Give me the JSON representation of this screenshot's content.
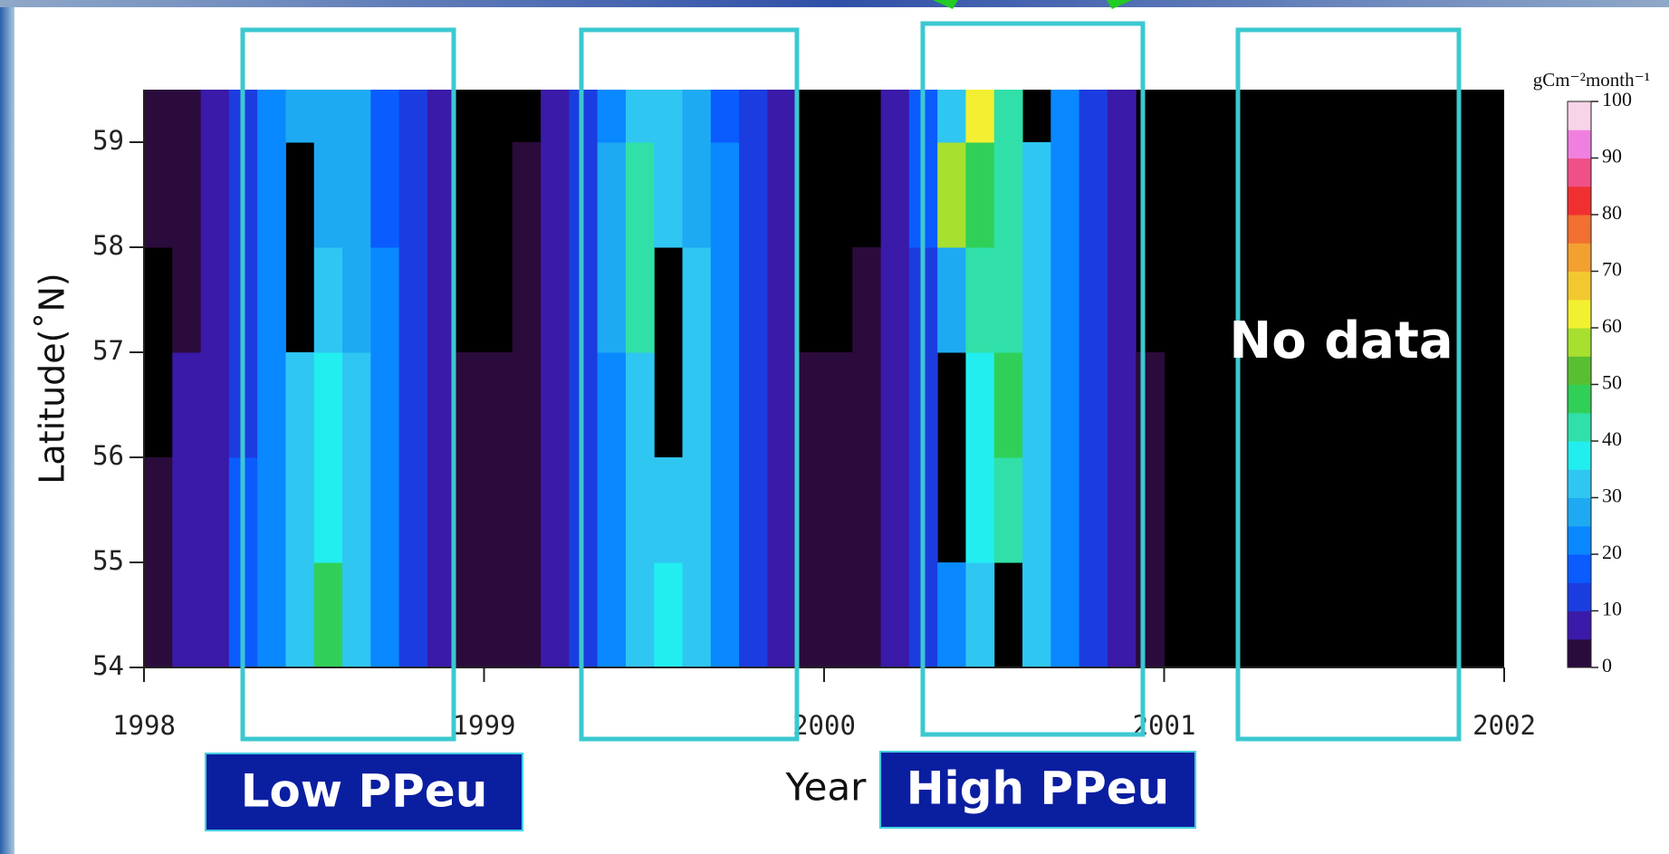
{
  "chart_data": {
    "type": "heatmap",
    "xlabel": "Year",
    "ylabel": "Latitude(˚N)",
    "colorbar_label": "gCm⁻²month⁻¹",
    "annotations": [
      "Low PPeu",
      "High PPeu",
      "No data"
    ],
    "xlim": [
      1998,
      2002
    ],
    "xticks": [
      1998,
      1999,
      2000,
      2001,
      2002
    ],
    "ylim": [
      54,
      59.5
    ],
    "yticks": [
      54,
      55,
      56,
      57,
      58,
      59
    ],
    "ybins": [
      54,
      55,
      56,
      57,
      58,
      59,
      59.5
    ],
    "nodata_color": "#000000",
    "levels": [
      0,
      5,
      10,
      15,
      20,
      25,
      30,
      35,
      40,
      45,
      50,
      55,
      60,
      65,
      70,
      75,
      80,
      85,
      90,
      95,
      100
    ],
    "colors": [
      "#2b0b3c",
      "#3a1aa8",
      "#1b3de0",
      "#0a5cff",
      "#0a88ff",
      "#1eaaf2",
      "#30c6f2",
      "#22eef0",
      "#30e0a8",
      "#30d058",
      "#58c030",
      "#a8e030",
      "#f2f030",
      "#f2c830",
      "#f2a030",
      "#f27030",
      "#f03030",
      "#f05088",
      "#f080e0",
      "#f8d4e8"
    ],
    "clim": [
      0,
      100
    ],
    "cticks": [
      0,
      10,
      20,
      30,
      40,
      50,
      60,
      70,
      80,
      90,
      100
    ],
    "z": [
      [
        3,
        5,
        9,
        15,
        24,
        32,
        45,
        32,
        22,
        12,
        6,
        3,
        3,
        3,
        6,
        12,
        22,
        30,
        38,
        32,
        20,
        12,
        6,
        3,
        3,
        3,
        6,
        14,
        24,
        32,
        null,
        32,
        24,
        14,
        6,
        3,
        null,
        null,
        null,
        null,
        null,
        null,
        null,
        null,
        null,
        null,
        null,
        null
      ],
      [
        3,
        5,
        9,
        15,
        24,
        34,
        38,
        32,
        20,
        12,
        6,
        3,
        3,
        3,
        6,
        12,
        22,
        32,
        34,
        30,
        20,
        12,
        6,
        3,
        3,
        3,
        6,
        14,
        null,
        36,
        40,
        32,
        24,
        14,
        6,
        3,
        null,
        null,
        null,
        null,
        null,
        null,
        null,
        null,
        null,
        null,
        null,
        null
      ],
      [
        null,
        5,
        8,
        14,
        22,
        33,
        35,
        30,
        20,
        12,
        6,
        3,
        3,
        3,
        6,
        12,
        24,
        34,
        null,
        30,
        20,
        12,
        6,
        3,
        3,
        3,
        6,
        14,
        null,
        38,
        45,
        34,
        24,
        14,
        6,
        3,
        null,
        null,
        null,
        null,
        null,
        null,
        null,
        null,
        null,
        null,
        null,
        null
      ],
      [
        null,
        4,
        7,
        13,
        22,
        null,
        30,
        28,
        20,
        10,
        6,
        null,
        null,
        3,
        6,
        14,
        26,
        44,
        null,
        30,
        20,
        12,
        6,
        null,
        null,
        3,
        6,
        14,
        28,
        42,
        40,
        34,
        24,
        14,
        6,
        null,
        null,
        null,
        null,
        null,
        null,
        null,
        null,
        null,
        null,
        null,
        null,
        null
      ],
      [
        3,
        4,
        7,
        12,
        20,
        null,
        28,
        26,
        18,
        10,
        5,
        null,
        null,
        3,
        6,
        14,
        26,
        40,
        34,
        28,
        20,
        10,
        5,
        null,
        null,
        null,
        8,
        18,
        55,
        45,
        40,
        34,
        24,
        14,
        6,
        null,
        null,
        null,
        null,
        null,
        null,
        null,
        null,
        null,
        null,
        null,
        null,
        null
      ],
      [
        3,
        4,
        7,
        12,
        20,
        28,
        28,
        26,
        18,
        10,
        5,
        null,
        null,
        null,
        6,
        14,
        24,
        34,
        30,
        26,
        18,
        10,
        5,
        null,
        null,
        null,
        8,
        18,
        30,
        60,
        40,
        null,
        24,
        14,
        6,
        null,
        null,
        null,
        null,
        null,
        null,
        null,
        null,
        null,
        null,
        null,
        null,
        null
      ]
    ]
  }
}
